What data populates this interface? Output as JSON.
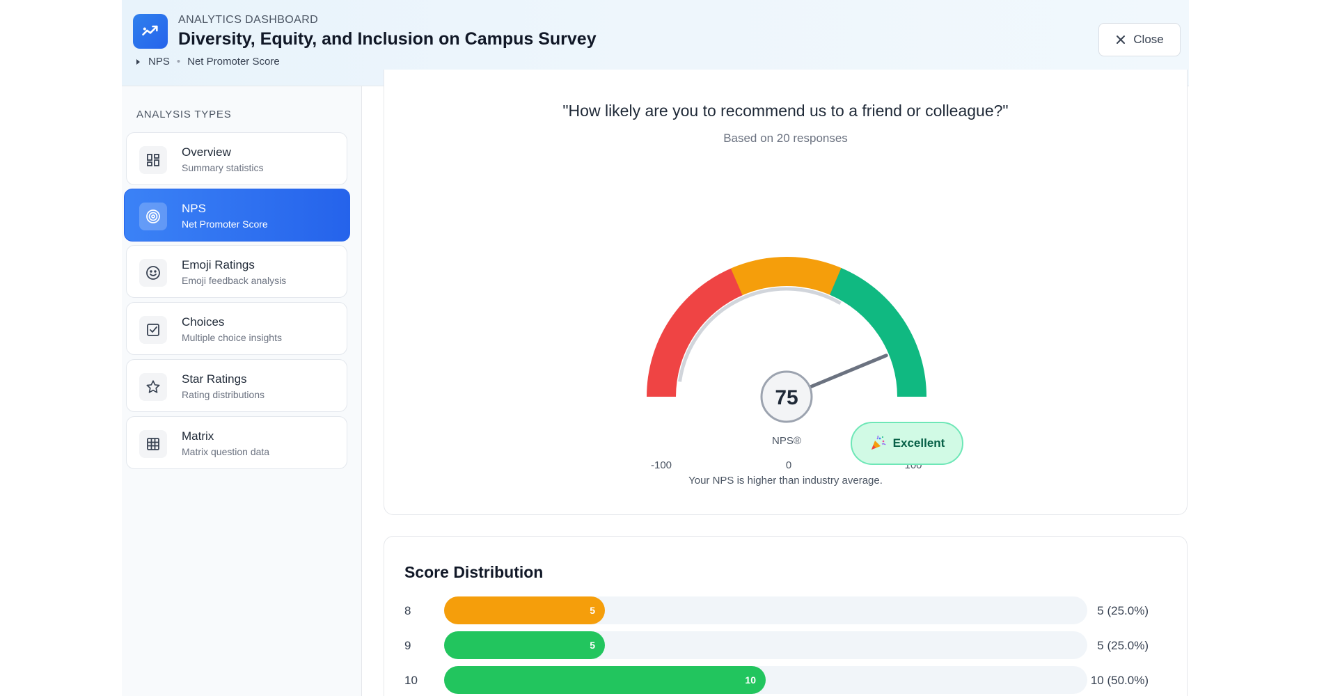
{
  "header": {
    "eyebrow": "ANALYTICS DASHBOARD",
    "title": "Diversity, Equity, and Inclusion on Campus Survey",
    "breadcrumb": [
      "NPS",
      "Net Promoter Score"
    ],
    "close_label": "Close"
  },
  "sidebar": {
    "heading": "ANALYSIS TYPES",
    "items": [
      {
        "label": "Overview",
        "sub": "Summary statistics",
        "icon": "grid-icon"
      },
      {
        "label": "NPS",
        "sub": "Net Promoter Score",
        "icon": "target-icon",
        "active": true
      },
      {
        "label": "Emoji Ratings",
        "sub": "Emoji feedback analysis",
        "icon": "smiley-icon"
      },
      {
        "label": "Choices",
        "sub": "Multiple choice insights",
        "icon": "checkbox-icon"
      },
      {
        "label": "Star Ratings",
        "sub": "Rating distributions",
        "icon": "star-icon"
      },
      {
        "label": "Matrix",
        "sub": "Matrix question data",
        "icon": "table-grid-icon"
      }
    ]
  },
  "nps": {
    "question": "\"How likely are you to recommend us to a friend or colleague?\"",
    "based_on": "Based on 20 responses",
    "score": 75,
    "score_label": "75",
    "label": "NPS®",
    "min_label": "-100",
    "mid_label": "0",
    "max_label": "100",
    "rating": "Excellent",
    "note": "Your NPS is higher than industry average.",
    "colors": {
      "detractor": "#ef4444",
      "passive": "#f59e0b",
      "promoter": "#10b981"
    }
  },
  "distribution": {
    "title": "Score Distribution",
    "rows": [
      {
        "score": "8",
        "count": 5,
        "label": "5 (25.0%)",
        "color": "#f59e0b"
      },
      {
        "score": "9",
        "count": 5,
        "label": "5 (25.0%)",
        "color": "#22c55e"
      },
      {
        "score": "10",
        "count": 10,
        "label": "10 (50.0%)",
        "color": "#22c55e"
      }
    ],
    "max_count": 20
  }
}
